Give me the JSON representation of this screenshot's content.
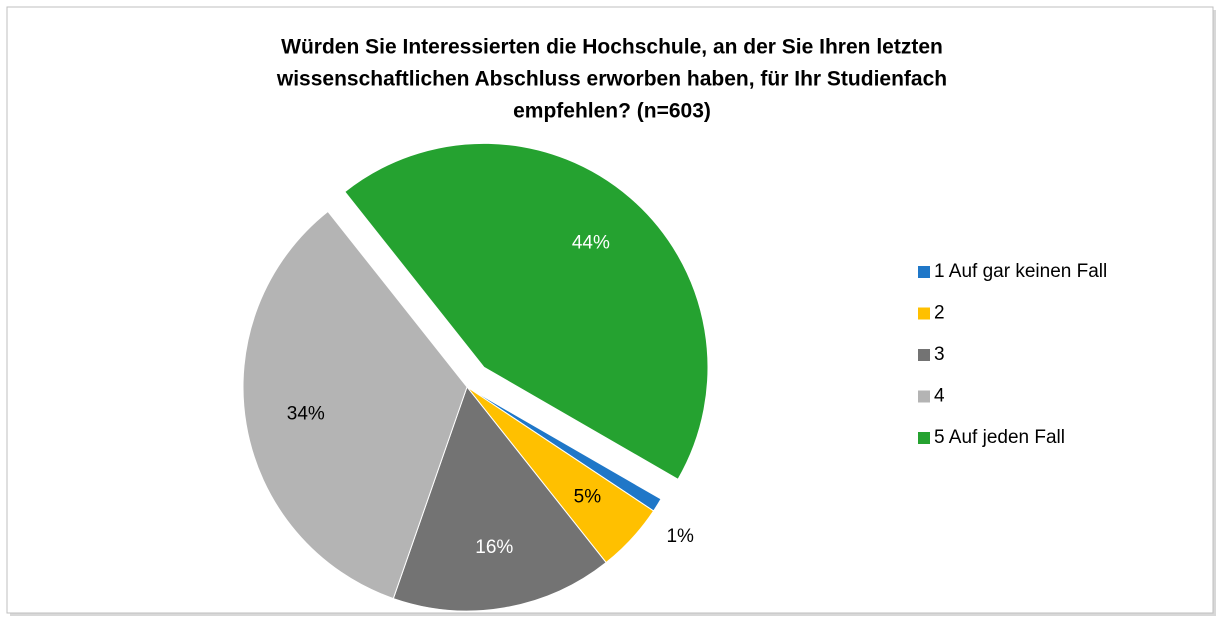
{
  "chart_data": {
    "type": "pie",
    "title": [
      "Würden Sie Interessierten die Hochschule, an der Sie Ihren letzten",
      "wissenschaftlichen Abschluss erworben haben, für Ihr Studienfach",
      "empfehlen? (n=603)"
    ],
    "categories": [
      "1 Auf gar keinen Fall",
      "2",
      "3",
      "4",
      "5 Auf jeden Fall"
    ],
    "values": [
      1,
      5,
      16,
      34,
      44
    ],
    "value_labels": [
      "1%",
      "5%",
      "16%",
      "34%",
      "44%"
    ],
    "colors": [
      "#1f77c8",
      "#ffc000",
      "#737373",
      "#b4b4b4",
      "#25a230"
    ],
    "legend": "right"
  }
}
